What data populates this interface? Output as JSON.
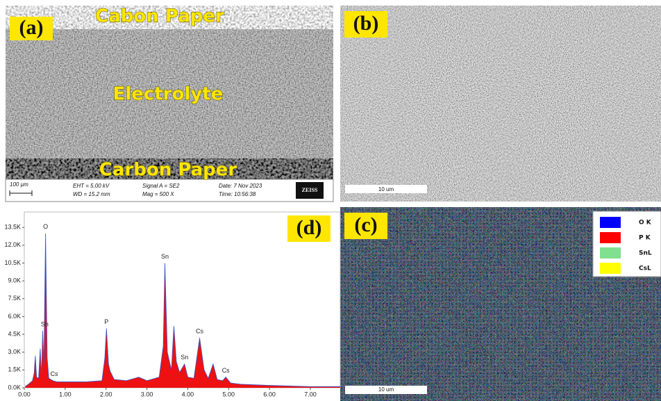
{
  "panel_a": {
    "label": "(a)",
    "top_text": "Cabon Paper",
    "middle_text": "Electrolyte",
    "bottom_text": "Carbon Paper",
    "info_bar": {
      "scale": "100 µm",
      "eht": "EHT =  5.00 kV",
      "wd": "WD = 15.2 mm",
      "signal": "Signal A = SE2",
      "mag": "Mag =   500 X",
      "date": "Date: 7 Nov 2023",
      "time": "Time: 10:56:38",
      "brand": "ZEISS"
    }
  },
  "panel_b": {
    "label": "(b)",
    "scale_bar": "10 um"
  },
  "panel_c": {
    "label": "(c)",
    "scale_bar": "10 um",
    "legend": [
      {
        "name": "O K",
        "color": "#0000ff"
      },
      {
        "name": "P K",
        "color": "#ff0000"
      },
      {
        "name": "SnL",
        "color": "#80e090"
      },
      {
        "name": "CsL",
        "color": "#ffff00"
      }
    ]
  },
  "chart_data": {
    "type": "area",
    "panel_label": "(d)",
    "color": "#ee1111",
    "line_color": "#3355cc",
    "x": [
      0.02,
      0.1,
      0.2,
      0.24,
      0.27,
      0.3,
      0.35,
      0.39,
      0.42,
      0.45,
      0.48,
      0.52,
      0.56,
      0.6,
      0.7,
      0.8,
      1.0,
      1.5,
      1.9,
      1.97,
      2.01,
      2.06,
      2.1,
      2.2,
      2.5,
      2.8,
      3.0,
      3.3,
      3.4,
      3.44,
      3.5,
      3.6,
      3.66,
      3.72,
      3.8,
      3.92,
      4.0,
      4.15,
      4.29,
      4.4,
      4.5,
      4.62,
      4.72,
      4.85,
      4.93,
      5.05,
      5.3,
      6.0,
      7.0,
      7.73
    ],
    "values": [
      100,
      300,
      600,
      1200,
      2700,
      900,
      800,
      3300,
      1000,
      4800,
      2000,
      13000,
      2500,
      800,
      600,
      500,
      500,
      500,
      600,
      2500,
      5000,
      2000,
      1400,
      700,
      600,
      900,
      600,
      900,
      3500,
      10500,
      3000,
      1500,
      5200,
      2200,
      1300,
      2000,
      900,
      800,
      4200,
      1500,
      800,
      2000,
      700,
      600,
      900,
      400,
      300,
      200,
      100,
      100
    ],
    "xlim": [
      0,
      7.73
    ],
    "ylim": [
      0,
      14800
    ],
    "xticks": [
      {
        "value": 0,
        "label": "0.00"
      },
      {
        "value": 1,
        "label": "1.00"
      },
      {
        "value": 2,
        "label": "2.00"
      },
      {
        "value": 3,
        "label": "3.00"
      },
      {
        "value": 4,
        "label": "4.00"
      },
      {
        "value": 5,
        "label": "5.00"
      },
      {
        "value": 6,
        "label": "6.00"
      },
      {
        "value": 7,
        "label": "7.00"
      }
    ],
    "yticks": [
      {
        "value": 0,
        "label": "0.0K"
      },
      {
        "value": 1500,
        "label": "1.5K"
      },
      {
        "value": 3000,
        "label": "3.0K"
      },
      {
        "value": 4500,
        "label": "4.5K"
      },
      {
        "value": 6000,
        "label": "6.0K"
      },
      {
        "value": 7500,
        "label": "7.5K"
      },
      {
        "value": 9000,
        "label": "9.0K"
      },
      {
        "value": 10500,
        "label": "10.5K"
      },
      {
        "value": 12000,
        "label": "12.0K"
      },
      {
        "value": 13500,
        "label": "13.5K"
      }
    ],
    "peak_labels": [
      {
        "label": "O",
        "x": 0.52,
        "y": 13000
      },
      {
        "label": "Sn",
        "x": 0.5,
        "y": 4800
      },
      {
        "label": "Cs",
        "x": 0.73,
        "y": 600
      },
      {
        "label": "P",
        "x": 2.01,
        "y": 5000
      },
      {
        "label": "Sn",
        "x": 3.44,
        "y": 10500
      },
      {
        "label": "Sn",
        "x": 3.92,
        "y": 2000
      },
      {
        "label": "Cs",
        "x": 4.29,
        "y": 4200
      },
      {
        "label": "Cs",
        "x": 4.93,
        "y": 900
      }
    ]
  }
}
